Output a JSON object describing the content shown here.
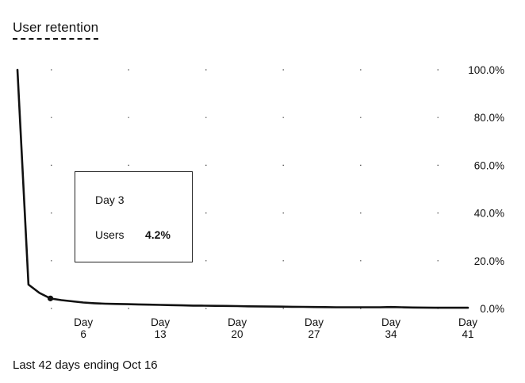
{
  "header": {
    "title": "User retention"
  },
  "footer": {
    "text": "Last 42 days ending Oct 16"
  },
  "tooltip": {
    "title": "Day 3",
    "series": "Users",
    "value": "4.2%"
  },
  "chart_data": {
    "type": "line",
    "title": "User retention",
    "xlabel": "",
    "ylabel": "",
    "x": [
      0,
      1,
      2,
      3,
      4,
      5,
      6,
      7,
      8,
      9,
      10,
      11,
      12,
      13,
      14,
      15,
      16,
      17,
      18,
      19,
      20,
      21,
      22,
      23,
      24,
      25,
      26,
      27,
      28,
      29,
      30,
      31,
      32,
      33,
      34,
      35,
      36,
      37,
      38,
      39,
      40,
      41
    ],
    "series": [
      {
        "values": [
          100,
          10,
          6.5,
          4.2,
          3.5,
          3.0,
          2.5,
          2.2,
          2.0,
          1.9,
          1.8,
          1.7,
          1.6,
          1.5,
          1.4,
          1.3,
          1.2,
          1.15,
          1.1,
          1.05,
          1.0,
          0.9,
          0.85,
          0.8,
          0.75,
          0.7,
          0.65,
          0.6,
          0.55,
          0.5,
          0.5,
          0.5,
          0.5,
          0.5,
          0.6,
          0.5,
          0.4,
          0.35,
          0.3,
          0.3,
          0.3,
          0.3
        ]
      }
    ],
    "highlight_index": 3,
    "xlim": [
      0,
      41
    ],
    "ylim": [
      0,
      100
    ],
    "x_ticks": [
      {
        "x": 6,
        "line1": "Day",
        "line2": "6"
      },
      {
        "x": 13,
        "line1": "Day",
        "line2": "13"
      },
      {
        "x": 20,
        "line1": "Day",
        "line2": "20"
      },
      {
        "x": 27,
        "line1": "Day",
        "line2": "27"
      },
      {
        "x": 34,
        "line1": "Day",
        "line2": "34"
      },
      {
        "x": 41,
        "line1": "Day",
        "line2": "41"
      }
    ],
    "y_ticks": [
      {
        "y": 100,
        "label": "100.0%"
      },
      {
        "y": 80,
        "label": "80.0%"
      },
      {
        "y": 60,
        "label": "60.0%"
      },
      {
        "y": 40,
        "label": "40.0%"
      },
      {
        "y": 20,
        "label": "20.0%"
      },
      {
        "y": 0,
        "label": "0.0%"
      }
    ],
    "grid": "dotted",
    "y_axis_position": "right",
    "line_color": "#111111"
  }
}
